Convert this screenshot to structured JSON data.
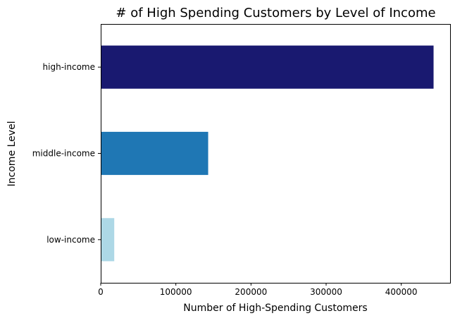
{
  "chart_data": {
    "type": "bar",
    "orientation": "horizontal",
    "title": "# of High Spending Customers by Level of Income",
    "xlabel": "Number of High-Spending Customers",
    "ylabel": "Income Level",
    "categories": [
      "low-income",
      "middle-income",
      "high-income"
    ],
    "values": [
      18000,
      143000,
      443000
    ],
    "colors": [
      "#add8e6",
      "#1f77b4",
      "#191970"
    ],
    "xlim": [
      0,
      465000
    ],
    "xticks": [
      0,
      100000,
      200000,
      300000,
      400000
    ],
    "grid": false,
    "legend": "none"
  }
}
